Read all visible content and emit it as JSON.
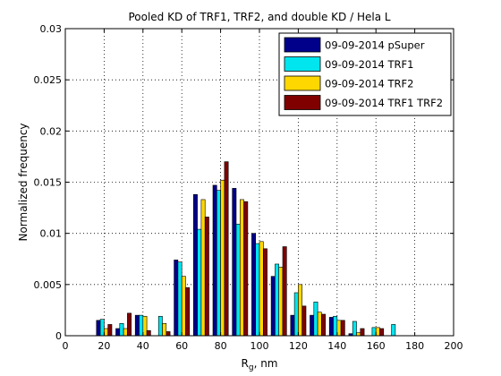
{
  "chart_data": {
    "type": "bar",
    "title": "Pooled KD of TRF1, TRF2, and double KD / Hela L",
    "xlabel_main": "R",
    "xlabel_sub": "g",
    "xlabel_tail": ", nm",
    "ylabel": "Normalized frequency",
    "xlim": [
      0,
      200
    ],
    "ylim": [
      0,
      0.03
    ],
    "xticks": [
      0,
      20,
      40,
      60,
      80,
      100,
      120,
      140,
      160,
      180,
      200
    ],
    "xtick_labels": [
      "0",
      "20",
      "40",
      "60",
      "80",
      "100",
      "120",
      "140",
      "160",
      "180",
      "200"
    ],
    "yticks": [
      0,
      0.005,
      0.01,
      0.015,
      0.02,
      0.025,
      0.03
    ],
    "ytick_labels": [
      "0",
      "0.005",
      "0.01",
      "0.015",
      "0.02",
      "0.025",
      "0.03"
    ],
    "grid": true,
    "legend_position": "top-right",
    "x": [
      20,
      30,
      40,
      50,
      60,
      70,
      80,
      90,
      100,
      110,
      120,
      130,
      140,
      150,
      160,
      170,
      180,
      190,
      200
    ],
    "series": [
      {
        "name": "09-09-2014 pSuper",
        "color": "#00008b",
        "values": [
          0.0015,
          0.0007,
          0.002,
          0.0,
          0.0074,
          0.0138,
          0.0147,
          0.0144,
          0.01,
          0.0058,
          0.002,
          0.002,
          0.0018,
          0.0002,
          0.0,
          0.0,
          0.0,
          0.0,
          0.0
        ]
      },
      {
        "name": "09-09-2014 TRF1",
        "color": "#00e5ee",
        "values": [
          0.0016,
          0.0012,
          0.002,
          0.0019,
          0.0072,
          0.0104,
          0.0142,
          0.0109,
          0.009,
          0.007,
          0.0042,
          0.0033,
          0.0019,
          0.0014,
          0.0008,
          0.0011,
          0.0,
          0.0,
          0.0
        ]
      },
      {
        "name": "09-09-2014 TRF2",
        "color": "#ffd700",
        "values": [
          0.0007,
          0.0007,
          0.0019,
          0.0012,
          0.0058,
          0.0133,
          0.0152,
          0.0133,
          0.0092,
          0.0067,
          0.005,
          0.0023,
          0.0015,
          0.0003,
          0.0008,
          0.0,
          0.0,
          0.0,
          0.0
        ]
      },
      {
        "name": "09-09-2014 TRF1 TRF2",
        "color": "#800000",
        "values": [
          0.0011,
          0.0022,
          0.0005,
          0.0004,
          0.0047,
          0.0116,
          0.017,
          0.0131,
          0.0085,
          0.0087,
          0.0029,
          0.0021,
          0.0015,
          0.0007,
          0.0007,
          0.0,
          0.0,
          0.0,
          0.0
        ]
      }
    ]
  }
}
